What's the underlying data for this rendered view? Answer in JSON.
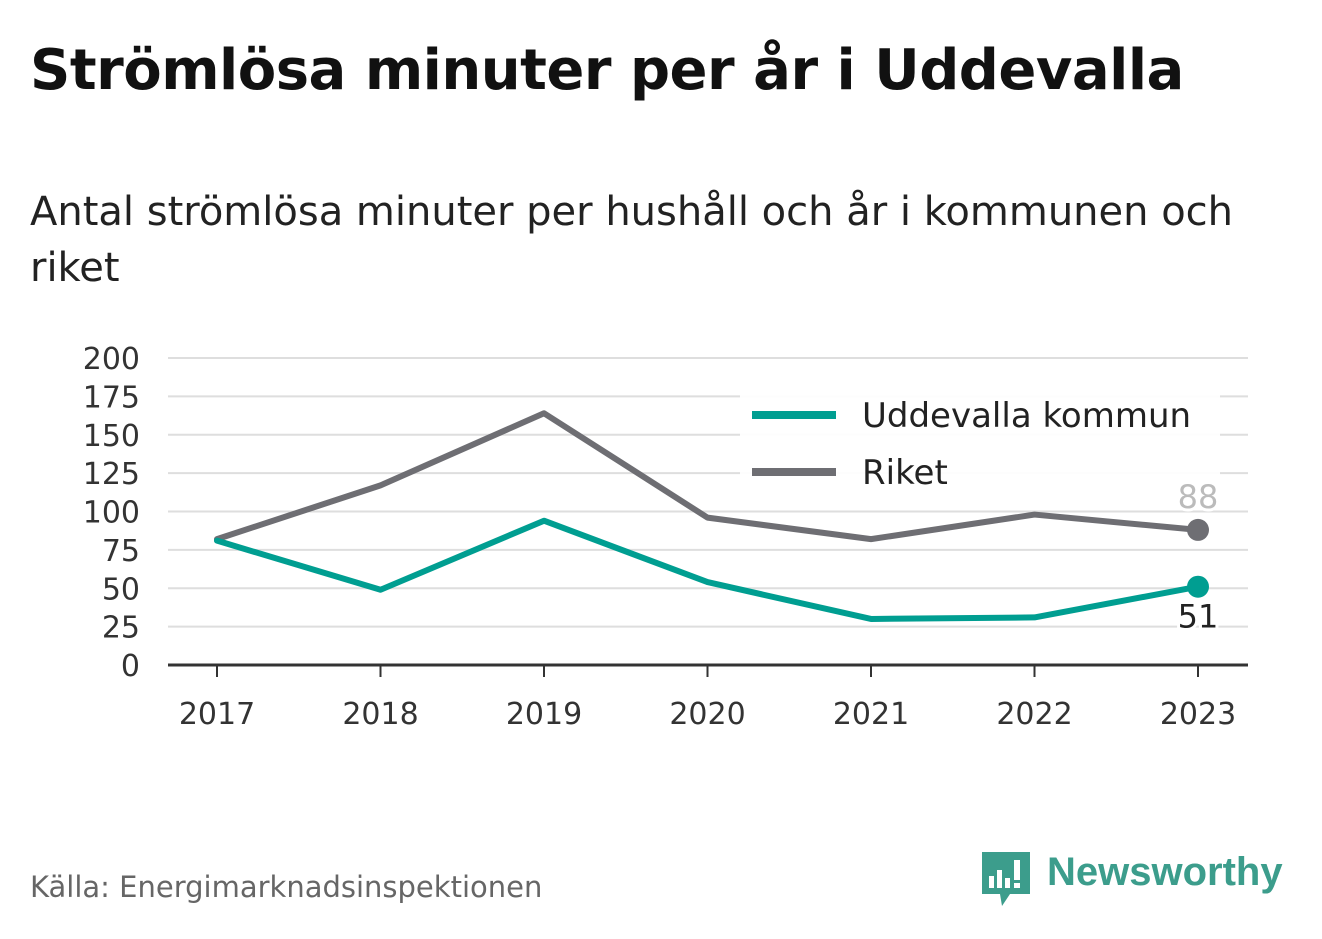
{
  "header": {
    "title": "Strömlösa minuter per år i Uddevalla",
    "subtitle": "Antal strömlösa minuter per hushåll och år i kommunen och riket"
  },
  "footer": {
    "source": "Källa: Energimarknadsinspektionen",
    "brand": "Newsworthy"
  },
  "colors": {
    "kommun": "#009e91",
    "riket": "#6e6e73",
    "grid": "#dedede",
    "axis": "#333333",
    "brand": "#3c9d8c"
  },
  "chart_data": {
    "type": "line",
    "categories": [
      "2017",
      "2018",
      "2019",
      "2020",
      "2021",
      "2022",
      "2023"
    ],
    "ylim": [
      0,
      200
    ],
    "yticks": [
      0,
      25,
      50,
      75,
      100,
      125,
      150,
      175,
      200
    ],
    "grid": true,
    "legend_position": "top-right",
    "series": [
      {
        "name": "Uddevalla kommun",
        "key": "kommun",
        "values": [
          81,
          49,
          94,
          54,
          30,
          31,
          51
        ],
        "end_label": "51"
      },
      {
        "name": "Riket",
        "key": "riket",
        "values": [
          82,
          117,
          164,
          96,
          82,
          98,
          88
        ],
        "end_label": "88"
      }
    ]
  }
}
